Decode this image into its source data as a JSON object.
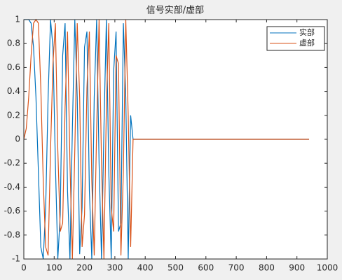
{
  "chart_data": {
    "type": "line",
    "title": "信号实部/虚部",
    "x": [
      0,
      8,
      16,
      24,
      32,
      40,
      48,
      56,
      64,
      72,
      80,
      88,
      96,
      104,
      112,
      120,
      128,
      136,
      144,
      152,
      160,
      168,
      176,
      184,
      192,
      200,
      208,
      216,
      224,
      232,
      240,
      248,
      256,
      264,
      272,
      280,
      288,
      296,
      304,
      312,
      320,
      328,
      336,
      344,
      352,
      360,
      940
    ],
    "series": [
      {
        "name": "实部",
        "color": "#0072bd",
        "values": [
          1,
          1,
          1,
          0.97,
          0.77,
          0.35,
          -0.27,
          -0.9,
          -1,
          -0.57,
          0.35,
          1,
          0.77,
          -0.2,
          -1,
          -0.63,
          0.7,
          0.97,
          -0.43,
          -1,
          0.09,
          1,
          0.35,
          -0.96,
          -0.57,
          0.77,
          0.9,
          -0.43,
          -1,
          0.35,
          1,
          -0.2,
          -1,
          0.09,
          1,
          -0.27,
          -1,
          0.57,
          0.9,
          -0.77,
          -0.7,
          0.97,
          0.35,
          -1,
          0.2,
          0,
          0
        ]
      },
      {
        "name": "虚部",
        "color": "#d95319",
        "values": [
          0,
          0.09,
          0.35,
          0.7,
          0.97,
          1,
          0.97,
          0.43,
          -0.35,
          -0.9,
          -0.97,
          -0.09,
          0.63,
          0.97,
          -0.09,
          -0.77,
          -0.7,
          0.27,
          0.9,
          -0.2,
          -1,
          -0.09,
          0.97,
          0.35,
          -0.9,
          -0.63,
          0.43,
          0.9,
          -0.35,
          -0.97,
          0.09,
          1,
          -0.2,
          -1,
          0.27,
          0.97,
          -0.57,
          -0.77,
          0.7,
          0.63,
          -0.97,
          -0.27,
          1,
          0.2,
          -0.9,
          0,
          0
        ]
      }
    ],
    "xlim": [
      0,
      1000
    ],
    "xticks": [
      0,
      100,
      200,
      300,
      400,
      500,
      600,
      700,
      800,
      900,
      1000
    ],
    "ylim": [
      -1,
      1
    ],
    "yticks": [
      -1,
      -0.8,
      -0.6,
      -0.4,
      -0.2,
      0,
      0.2,
      0.4,
      0.6,
      0.8,
      1
    ],
    "legend": "northeast"
  }
}
